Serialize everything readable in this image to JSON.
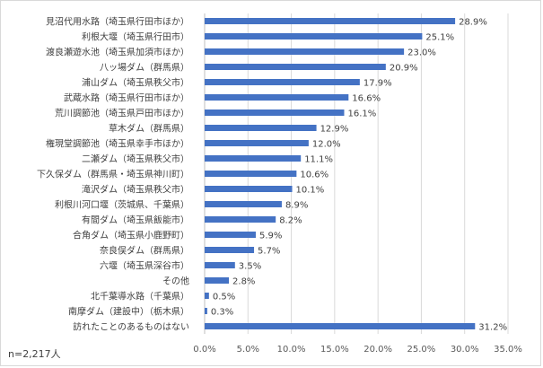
{
  "chart_data": {
    "type": "bar",
    "orientation": "horizontal",
    "categories": [
      "見沼代用水路（埼玉県行田市ほか）",
      "利根大堰（埼玉県行田市）",
      "渡良瀬遊水池（埼玉県加須市ほか）",
      "八ッ場ダム（群馬県）",
      "浦山ダム（埼玉県秩父市）",
      "武蔵水路（埼玉県行田市ほか）",
      "荒川調節池（埼玉県戸田市ほか）",
      "草木ダム（群馬県）",
      "権現堂調節池（埼玉県幸手市ほか）",
      "二瀬ダム（埼玉県秩父市）",
      "下久保ダム（群馬県・埼玉県神川町）",
      "滝沢ダム（埼玉県秩父市）",
      "利根川河口堰（茨城県、千葉県）",
      "有間ダム（埼玉県飯能市）",
      "合角ダム（埼玉県小鹿野町）",
      "奈良俣ダム（群馬県）",
      "六堰（埼玉県深谷市）",
      "その他",
      "北千葉導水路（千葉県）",
      "南摩ダム（建設中）（栃木県）",
      "訪れたことのあるものはない"
    ],
    "values": [
      28.9,
      25.1,
      23.0,
      20.9,
      17.9,
      16.6,
      16.1,
      12.9,
      12.0,
      11.1,
      10.6,
      10.1,
      8.9,
      8.2,
      5.9,
      5.7,
      3.5,
      2.8,
      0.5,
      0.3,
      31.2
    ],
    "value_labels": [
      "28.9%",
      "25.1%",
      "23.0%",
      "20.9%",
      "17.9%",
      "16.6%",
      "16.1%",
      "12.9%",
      "12.0%",
      "11.1%",
      "10.6%",
      "10.1%",
      "8.9%",
      "8.2%",
      "5.9%",
      "5.7%",
      "3.5%",
      "2.8%",
      "0.5%",
      "0.3%",
      "31.2%"
    ],
    "xlim": [
      0,
      35
    ],
    "x_ticks": [
      "0.0%",
      "5.0%",
      "10.0%",
      "15.0%",
      "20.0%",
      "25.0%",
      "30.0%",
      "35.0%"
    ],
    "grid": true,
    "bar_color": "#4472c4",
    "note": "n=2,217人"
  }
}
